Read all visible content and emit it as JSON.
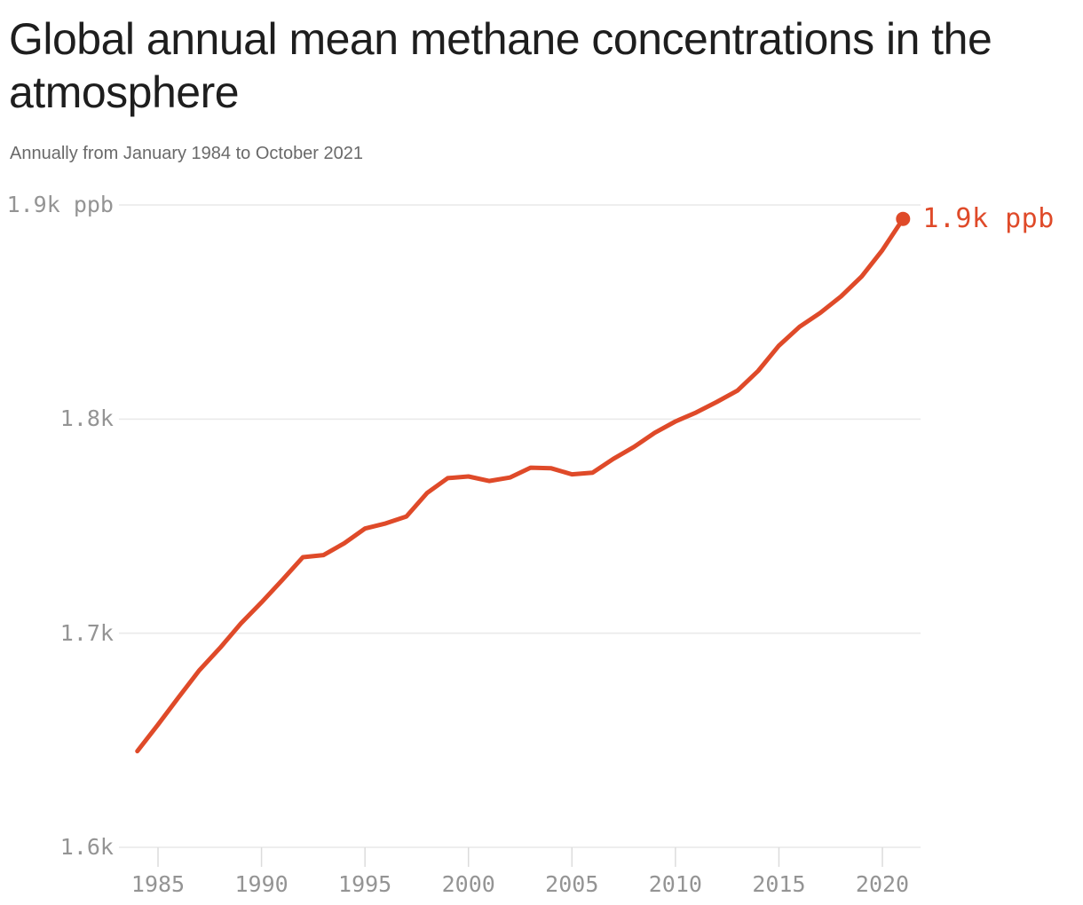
{
  "header": {
    "title_lines": [
      "Global annual mean methane concentrations in the",
      "atmosphere"
    ],
    "title_full": "Global annual mean methane concentrations in the atmosphere",
    "subtitle": "Annually from January 1984 to October 2021"
  },
  "colors": {
    "accent_line": "#df4a29",
    "gridline": "#e9e9e9",
    "tick": "#dcdcdc",
    "axis_text": "#949494",
    "title_text": "#1e1e1e",
    "subtitle_text": "#696969",
    "background": "#ffffff"
  },
  "chart_data": {
    "type": "line",
    "title": "Global annual mean methane concentrations in the atmosphere",
    "subtitle": "Annually from January 1984 to October 2021",
    "series_name": "Global annual mean methane concentration",
    "unit": "ppb",
    "xlabel": "",
    "ylabel": "ppb",
    "xlim": [
      1983.1,
      2021.9
    ],
    "ylim": [
      1600,
      1900
    ],
    "grid": "horizontal-only",
    "legend": "none",
    "x": [
      1984,
      1985,
      1986,
      1987,
      1988,
      1989,
      1990,
      1991,
      1992,
      1993,
      1994,
      1995,
      1996,
      1997,
      1998,
      1999,
      2000,
      2001,
      2002,
      2003,
      2004,
      2005,
      2006,
      2007,
      2008,
      2009,
      2010,
      2011,
      2012,
      2013,
      2014,
      2015,
      2016,
      2017,
      2018,
      2019,
      2020,
      2021
    ],
    "values": [
      1644.9,
      1657.3,
      1670.1,
      1682.7,
      1693.2,
      1704.5,
      1714.4,
      1724.8,
      1735.5,
      1736.5,
      1742.0,
      1748.9,
      1751.3,
      1754.5,
      1765.5,
      1772.4,
      1773.2,
      1771.1,
      1772.7,
      1777.3,
      1777.0,
      1774.2,
      1775.0,
      1781.4,
      1787.0,
      1793.6,
      1798.9,
      1803.1,
      1808.0,
      1813.3,
      1822.5,
      1834.3,
      1843.1,
      1849.6,
      1857.3,
      1866.6,
      1878.9,
      1893.5
    ],
    "yticks": [
      {
        "value": 1900,
        "label": "1.9k ppb"
      },
      {
        "value": 1800,
        "label": "1.8k"
      },
      {
        "value": 1700,
        "label": "1.7k"
      },
      {
        "value": 1600,
        "label": "1.6k"
      }
    ],
    "xticks": [
      "1985",
      "1990",
      "1995",
      "2000",
      "2005",
      "2010",
      "2015",
      "2020"
    ],
    "end_annotation": "1.9k ppb"
  }
}
